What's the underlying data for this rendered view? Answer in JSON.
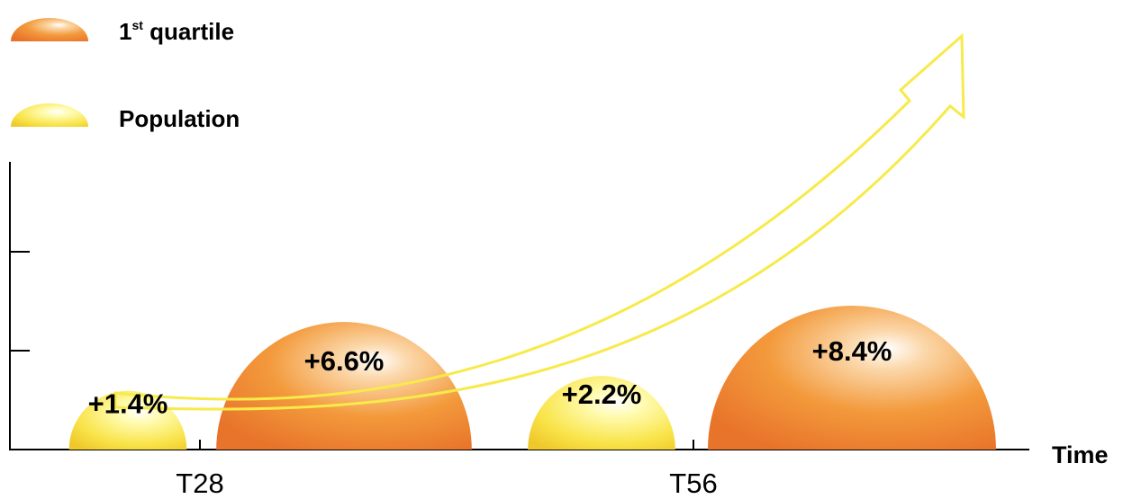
{
  "chart_data": {
    "type": "bubble",
    "x_ticks": [
      "T28",
      "T56"
    ],
    "xlabel": "Time",
    "legend": {
      "placement": "top-left",
      "items": [
        {
          "key": "first_quartile",
          "label_main": "1",
          "label_sup": "st",
          "label_rest": " quartile",
          "color": "#ef8a2c"
        },
        {
          "key": "population",
          "label_main": "Population",
          "label_sup": "",
          "label_rest": "",
          "color": "#f5dd2c"
        }
      ]
    },
    "series": [
      {
        "name": "Population",
        "color": "#f5dd2c",
        "values": [
          {
            "period": "T28",
            "value": 1.4,
            "label": "+1.4%"
          },
          {
            "period": "T56",
            "value": 2.2,
            "label": "+2.2%"
          }
        ]
      },
      {
        "name": "1st quartile",
        "color": "#ef8a2c",
        "values": [
          {
            "period": "T28",
            "value": 6.6,
            "label": "+6.6%"
          },
          {
            "period": "T56",
            "value": 8.4,
            "label": "+8.4%"
          }
        ]
      }
    ],
    "trend_arrow": {
      "direction": "up",
      "color": "#f7ea4a"
    }
  }
}
